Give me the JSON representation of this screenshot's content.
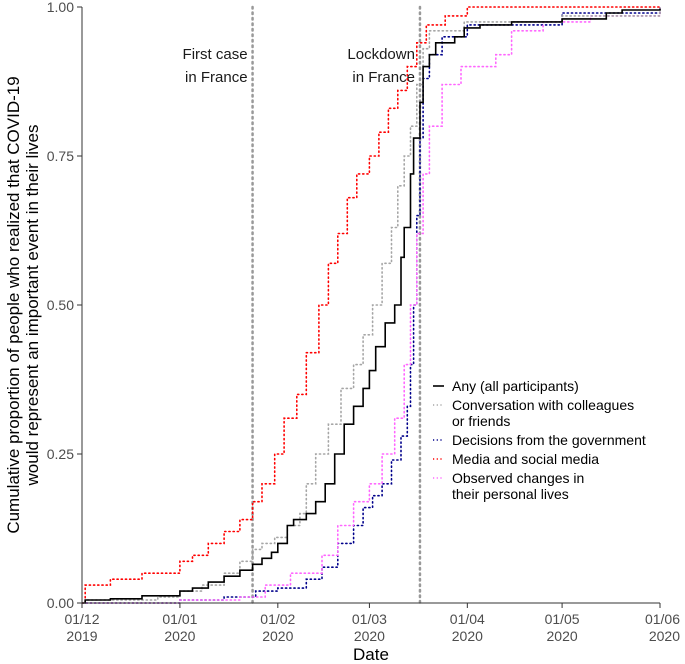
{
  "chart_data": {
    "type": "line",
    "title": "",
    "xlabel": "Date",
    "ylabel_lines": [
      "Cumulative proportion of people who realized that COVID-19",
      "would represent an important event in their lives"
    ],
    "x_type": "date",
    "xlim": [
      "2019-12-01",
      "2020-06-01"
    ],
    "ylim": [
      0,
      1
    ],
    "x_ticks": [
      {
        "value": "2019-12-01",
        "line1": "01/12",
        "line2": "2019"
      },
      {
        "value": "2020-01-01",
        "line1": "01/01",
        "line2": "2020"
      },
      {
        "value": "2020-02-01",
        "line1": "01/02",
        "line2": "2020"
      },
      {
        "value": "2020-03-01",
        "line1": "01/03",
        "line2": "2020"
      },
      {
        "value": "2020-04-01",
        "line1": "01/04",
        "line2": "2020"
      },
      {
        "value": "2020-05-01",
        "line1": "01/05",
        "line2": "2020"
      },
      {
        "value": "2020-06-01",
        "line1": "01/06",
        "line2": "2020"
      }
    ],
    "y_ticks": [
      {
        "value": 0,
        "label": "0.00"
      },
      {
        "value": 0.25,
        "label": "0.25"
      },
      {
        "value": 0.5,
        "label": "0.50"
      },
      {
        "value": 0.75,
        "label": "0.75"
      },
      {
        "value": 1,
        "label": "1.00"
      }
    ],
    "grid": false,
    "legend_position": "right",
    "step": true,
    "vlines": [
      {
        "x": "2020-01-24",
        "label_lines": [
          "First case",
          "in France"
        ],
        "color": "#999999"
      },
      {
        "x": "2020-03-17",
        "label_lines": [
          "Lockdown",
          "in France"
        ],
        "color": "#999999"
      }
    ],
    "series": [
      {
        "name_lines": [
          "Any (all participants)"
        ],
        "color": "#000000",
        "dash": "solid",
        "points": [
          [
            "2019-12-01",
            0
          ],
          [
            "2019-12-02",
            0.005
          ],
          [
            "2019-12-10",
            0.007
          ],
          [
            "2019-12-20",
            0.012
          ],
          [
            "2020-01-01",
            0.02
          ],
          [
            "2020-01-05",
            0.025
          ],
          [
            "2020-01-10",
            0.035
          ],
          [
            "2020-01-15",
            0.045
          ],
          [
            "2020-01-20",
            0.055
          ],
          [
            "2020-01-24",
            0.065
          ],
          [
            "2020-01-27",
            0.075
          ],
          [
            "2020-01-30",
            0.085
          ],
          [
            "2020-02-01",
            0.1
          ],
          [
            "2020-02-04",
            0.13
          ],
          [
            "2020-02-06",
            0.14
          ],
          [
            "2020-02-10",
            0.15
          ],
          [
            "2020-02-13",
            0.17
          ],
          [
            "2020-02-16",
            0.2
          ],
          [
            "2020-02-19",
            0.25
          ],
          [
            "2020-02-22",
            0.3
          ],
          [
            "2020-02-25",
            0.33
          ],
          [
            "2020-02-28",
            0.36
          ],
          [
            "2020-03-01",
            0.39
          ],
          [
            "2020-03-03",
            0.43
          ],
          [
            "2020-03-06",
            0.47
          ],
          [
            "2020-03-09",
            0.5
          ],
          [
            "2020-03-11",
            0.58
          ],
          [
            "2020-03-12",
            0.63
          ],
          [
            "2020-03-14",
            0.72
          ],
          [
            "2020-03-15",
            0.78
          ],
          [
            "2020-03-17",
            0.84
          ],
          [
            "2020-03-18",
            0.9
          ],
          [
            "2020-03-20",
            0.92
          ],
          [
            "2020-03-22",
            0.94
          ],
          [
            "2020-03-28",
            0.95
          ],
          [
            "2020-03-31",
            0.965
          ],
          [
            "2020-04-05",
            0.97
          ],
          [
            "2020-04-15",
            0.975
          ],
          [
            "2020-05-01",
            0.98
          ],
          [
            "2020-05-15",
            0.99
          ],
          [
            "2020-05-20",
            0.995
          ],
          [
            "2020-06-01",
            0.997
          ]
        ]
      },
      {
        "name_lines": [
          "Conversation with colleagues",
          "or friends"
        ],
        "color": "#a6a6a6",
        "dash": "dotted",
        "points": [
          [
            "2019-12-01",
            0
          ],
          [
            "2019-12-02",
            0.005
          ],
          [
            "2019-12-25",
            0.01
          ],
          [
            "2020-01-01",
            0.02
          ],
          [
            "2020-01-08",
            0.03
          ],
          [
            "2020-01-15",
            0.05
          ],
          [
            "2020-01-20",
            0.07
          ],
          [
            "2020-01-24",
            0.09
          ],
          [
            "2020-01-27",
            0.1
          ],
          [
            "2020-01-31",
            0.11
          ],
          [
            "2020-02-04",
            0.13
          ],
          [
            "2020-02-08",
            0.15
          ],
          [
            "2020-02-10",
            0.2
          ],
          [
            "2020-02-13",
            0.25
          ],
          [
            "2020-02-17",
            0.3
          ],
          [
            "2020-02-21",
            0.36
          ],
          [
            "2020-02-25",
            0.4
          ],
          [
            "2020-02-28",
            0.45
          ],
          [
            "2020-03-02",
            0.5
          ],
          [
            "2020-03-05",
            0.57
          ],
          [
            "2020-03-08",
            0.63
          ],
          [
            "2020-03-10",
            0.7
          ],
          [
            "2020-03-12",
            0.75
          ],
          [
            "2020-03-14",
            0.8
          ],
          [
            "2020-03-16",
            0.87
          ],
          [
            "2020-03-18",
            0.93
          ],
          [
            "2020-03-20",
            0.96
          ],
          [
            "2020-03-31",
            0.975
          ],
          [
            "2020-05-01",
            0.985
          ],
          [
            "2020-06-01",
            1.0
          ]
        ]
      },
      {
        "name_lines": [
          "Decisions from the government"
        ],
        "color": "#00008b",
        "dash": "dotted",
        "points": [
          [
            "2019-12-01",
            0
          ],
          [
            "2020-01-01",
            0.005
          ],
          [
            "2020-01-15",
            0.01
          ],
          [
            "2020-01-25",
            0.02
          ],
          [
            "2020-02-01",
            0.025
          ],
          [
            "2020-02-10",
            0.04
          ],
          [
            "2020-02-15",
            0.06
          ],
          [
            "2020-02-20",
            0.1
          ],
          [
            "2020-02-25",
            0.13
          ],
          [
            "2020-02-28",
            0.16
          ],
          [
            "2020-03-02",
            0.18
          ],
          [
            "2020-03-05",
            0.2
          ],
          [
            "2020-03-08",
            0.24
          ],
          [
            "2020-03-11",
            0.28
          ],
          [
            "2020-03-13",
            0.33
          ],
          [
            "2020-03-14",
            0.4
          ],
          [
            "2020-03-15",
            0.5
          ],
          [
            "2020-03-16",
            0.65
          ],
          [
            "2020-03-17",
            0.78
          ],
          [
            "2020-03-18",
            0.88
          ],
          [
            "2020-03-20",
            0.92
          ],
          [
            "2020-03-24",
            0.95
          ],
          [
            "2020-04-01",
            0.97
          ],
          [
            "2020-05-01",
            0.99
          ],
          [
            "2020-06-01",
            1.0
          ]
        ]
      },
      {
        "name_lines": [
          "Media and social media"
        ],
        "color": "#ff0000",
        "dash": "dotted",
        "points": [
          [
            "2019-12-01",
            0
          ],
          [
            "2019-12-02",
            0.03
          ],
          [
            "2019-12-10",
            0.04
          ],
          [
            "2019-12-20",
            0.05
          ],
          [
            "2020-01-01",
            0.07
          ],
          [
            "2020-01-05",
            0.08
          ],
          [
            "2020-01-10",
            0.1
          ],
          [
            "2020-01-15",
            0.12
          ],
          [
            "2020-01-20",
            0.14
          ],
          [
            "2020-01-24",
            0.17
          ],
          [
            "2020-01-27",
            0.2
          ],
          [
            "2020-01-31",
            0.25
          ],
          [
            "2020-02-03",
            0.31
          ],
          [
            "2020-02-07",
            0.35
          ],
          [
            "2020-02-10",
            0.42
          ],
          [
            "2020-02-14",
            0.5
          ],
          [
            "2020-02-17",
            0.57
          ],
          [
            "2020-02-20",
            0.62
          ],
          [
            "2020-02-23",
            0.68
          ],
          [
            "2020-02-26",
            0.72
          ],
          [
            "2020-03-01",
            0.75
          ],
          [
            "2020-03-04",
            0.79
          ],
          [
            "2020-03-07",
            0.83
          ],
          [
            "2020-03-10",
            0.86
          ],
          [
            "2020-03-13",
            0.9
          ],
          [
            "2020-03-16",
            0.94
          ],
          [
            "2020-03-19",
            0.97
          ],
          [
            "2020-03-25",
            0.985
          ],
          [
            "2020-04-01",
            1.0
          ],
          [
            "2020-06-01",
            1.0
          ]
        ]
      },
      {
        "name_lines": [
          "Observed changes in",
          "their personal lives"
        ],
        "color": "#ff66ff",
        "dash": "dotted",
        "points": [
          [
            "2019-12-01",
            0
          ],
          [
            "2020-01-01",
            0.005
          ],
          [
            "2020-01-20",
            0.01
          ],
          [
            "2020-01-28",
            0.03
          ],
          [
            "2020-02-05",
            0.05
          ],
          [
            "2020-02-15",
            0.08
          ],
          [
            "2020-02-20",
            0.13
          ],
          [
            "2020-02-25",
            0.17
          ],
          [
            "2020-03-01",
            0.2
          ],
          [
            "2020-03-05",
            0.25
          ],
          [
            "2020-03-09",
            0.31
          ],
          [
            "2020-03-12",
            0.4
          ],
          [
            "2020-03-14",
            0.5
          ],
          [
            "2020-03-16",
            0.62
          ],
          [
            "2020-03-18",
            0.72
          ],
          [
            "2020-03-20",
            0.8
          ],
          [
            "2020-03-24",
            0.87
          ],
          [
            "2020-03-30",
            0.9
          ],
          [
            "2020-04-10",
            0.92
          ],
          [
            "2020-04-15",
            0.96
          ],
          [
            "2020-04-25",
            0.975
          ],
          [
            "2020-05-10",
            0.985
          ],
          [
            "2020-06-01",
            1.0
          ]
        ]
      }
    ]
  }
}
